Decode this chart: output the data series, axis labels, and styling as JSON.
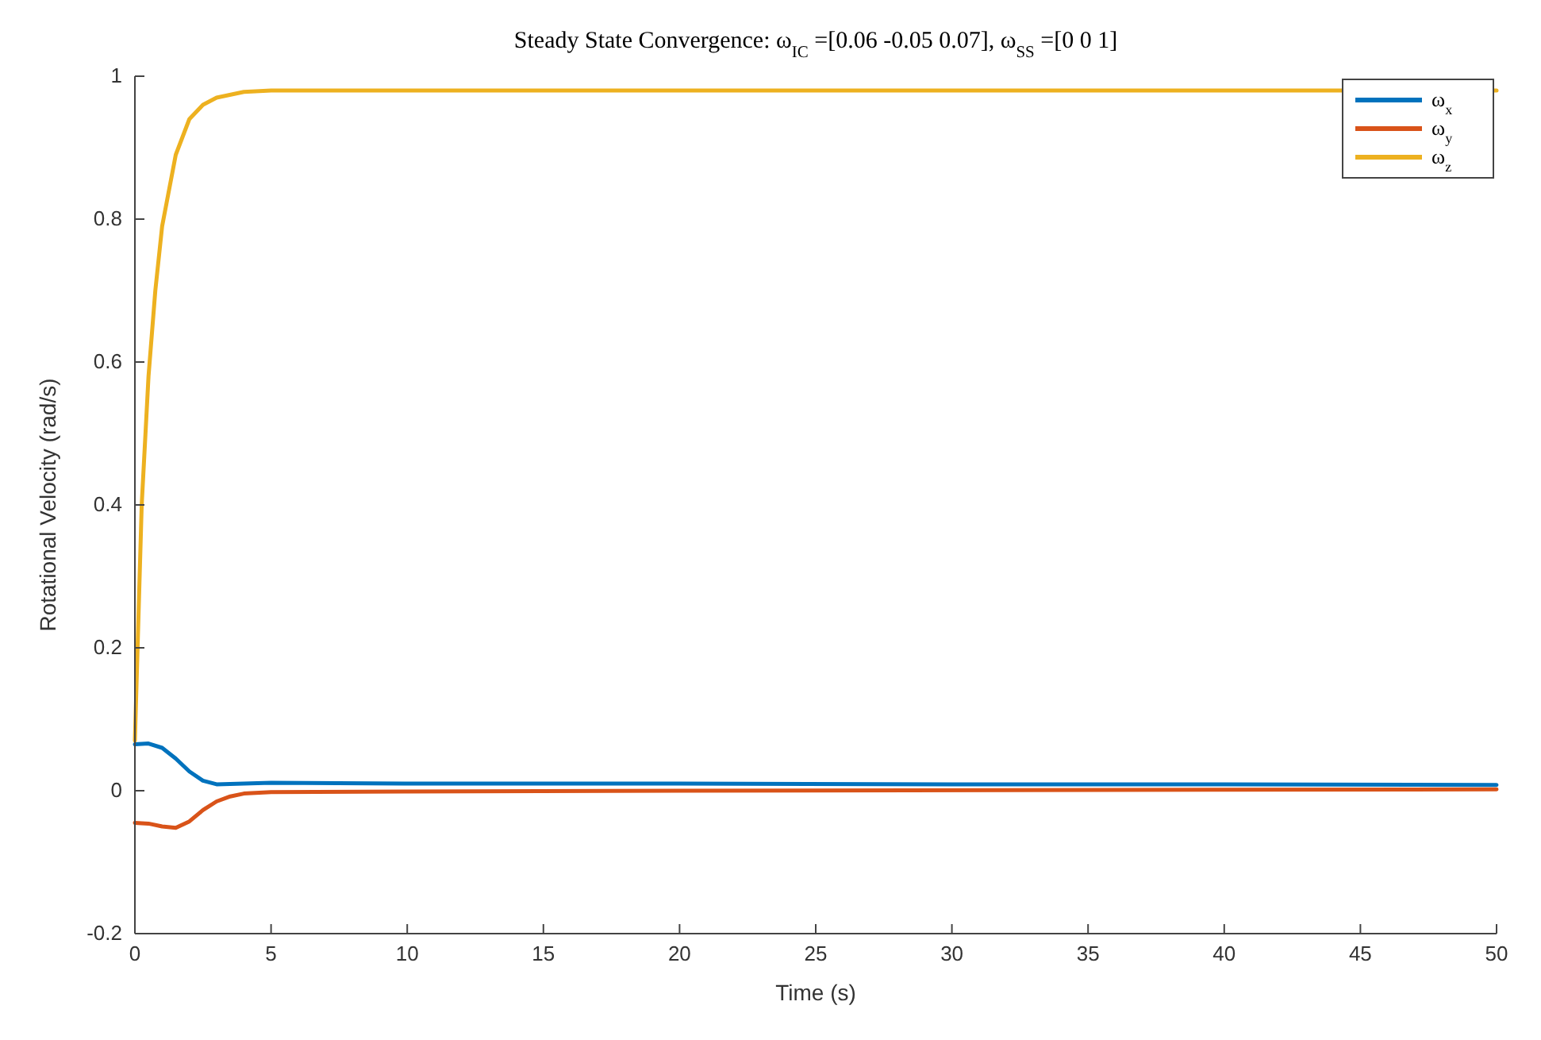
{
  "chart_data": {
    "type": "line",
    "title": "Steady State Convergence: ω$_{IC}$ =[0.06 -0.05 0.07], ω$_{SS}$ =[0 0 1]",
    "xlabel": "Time (s)",
    "ylabel": "Rotational Velocity (rad/s)",
    "xlim": [
      0,
      50
    ],
    "ylim": [
      -0.2,
      1
    ],
    "xticks": [
      0,
      5,
      10,
      15,
      20,
      25,
      30,
      35,
      40,
      45,
      50
    ],
    "yticks": [
      -0.2,
      0,
      0.2,
      0.4,
      0.6,
      0.8,
      1
    ],
    "grid": false,
    "legend": "top right",
    "line_style": "solid",
    "marker": "none",
    "series": [
      {
        "name": "ω$_{x}$",
        "color": "#0072bd",
        "x": [
          0,
          0.5,
          1,
          1.5,
          2,
          2.5,
          3,
          4,
          5,
          10,
          20,
          30,
          40,
          50
        ],
        "values": [
          0.065,
          0.066,
          0.06,
          0.045,
          0.027,
          0.014,
          0.009,
          0.01,
          0.011,
          0.01,
          0.01,
          0.009,
          0.009,
          0.008
        ]
      },
      {
        "name": "ω$_{y}$",
        "color": "#d95319",
        "x": [
          0,
          0.5,
          1,
          1.5,
          2,
          2.5,
          3,
          3.5,
          4,
          5,
          10,
          20,
          50
        ],
        "values": [
          -0.045,
          -0.046,
          -0.05,
          -0.052,
          -0.043,
          -0.027,
          -0.015,
          -0.008,
          -0.004,
          -0.002,
          -0.001,
          0,
          0.002
        ]
      },
      {
        "name": "ω$_{z}$",
        "color": "#edb120",
        "x": [
          0,
          0.25,
          0.5,
          0.75,
          1,
          1.5,
          2,
          2.5,
          3,
          4,
          5,
          50
        ],
        "values": [
          0.07,
          0.4,
          0.58,
          0.7,
          0.79,
          0.89,
          0.94,
          0.96,
          0.97,
          0.978,
          0.98,
          0.98
        ]
      }
    ]
  }
}
